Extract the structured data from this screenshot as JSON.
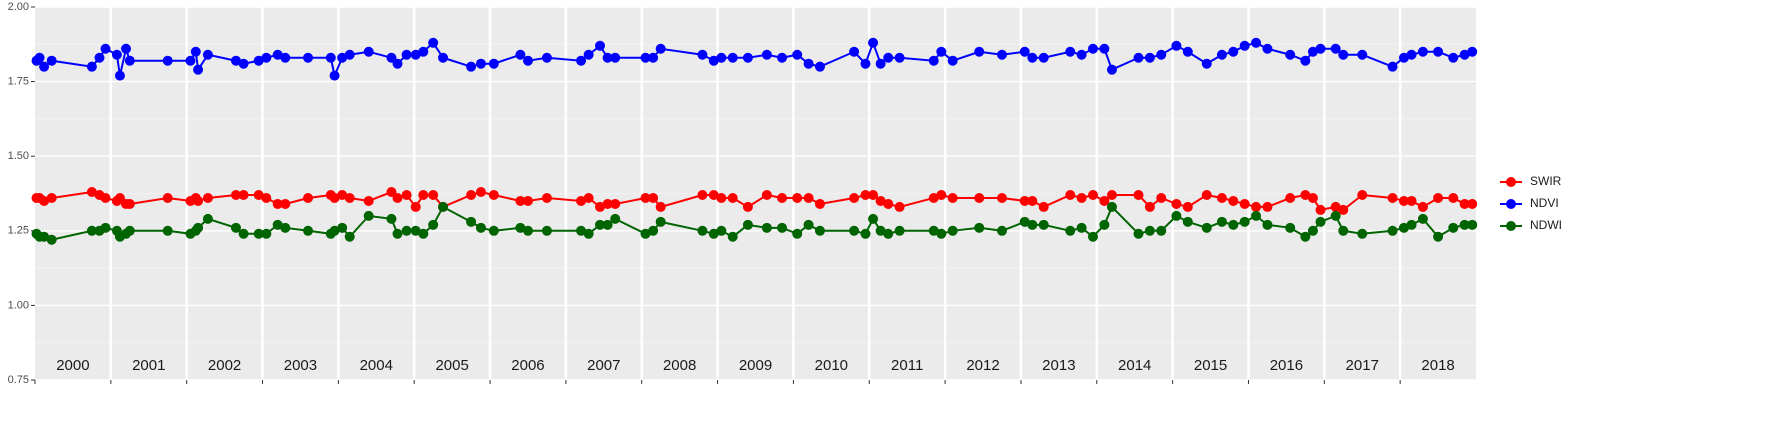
{
  "chart_data": {
    "type": "line",
    "x": [
      2000.02,
      2000.06,
      2000.12,
      2000.22,
      2000.75,
      2000.85,
      2000.93,
      2001.08,
      2001.12,
      2001.2,
      2001.25,
      2001.75,
      2002.05,
      2002.12,
      2002.15,
      2002.28,
      2002.65,
      2002.75,
      2002.95,
      2003.05,
      2003.2,
      2003.3,
      2003.6,
      2003.9,
      2003.95,
      2004.05,
      2004.15,
      2004.4,
      2004.7,
      2004.78,
      2004.9,
      2005.02,
      2005.12,
      2005.25,
      2005.38,
      2005.75,
      2005.88,
      2006.05,
      2006.4,
      2006.5,
      2006.75,
      2007.2,
      2007.3,
      2007.45,
      2007.55,
      2007.65,
      2008.05,
      2008.15,
      2008.25,
      2008.8,
      2008.95,
      2009.05,
      2009.2,
      2009.4,
      2009.65,
      2009.85,
      2010.05,
      2010.2,
      2010.35,
      2010.8,
      2010.95,
      2011.05,
      2011.15,
      2011.25,
      2011.4,
      2011.85,
      2011.95,
      2012.1,
      2012.45,
      2012.75,
      2013.05,
      2013.15,
      2013.3,
      2013.65,
      2013.8,
      2013.95,
      2014.1,
      2014.2,
      2014.55,
      2014.7,
      2014.85,
      2015.05,
      2015.2,
      2015.45,
      2015.65,
      2015.8,
      2015.95,
      2016.1,
      2016.25,
      2016.55,
      2016.75,
      2016.85,
      2016.95,
      2017.15,
      2017.25,
      2017.5,
      2017.9,
      2018.05,
      2018.15,
      2018.3,
      2018.5,
      2018.7,
      2018.85,
      2018.95
    ],
    "series": [
      {
        "name": "SWIR",
        "color": "#ff0000",
        "values": [
          1.36,
          1.36,
          1.35,
          1.36,
          1.38,
          1.37,
          1.36,
          1.35,
          1.36,
          1.34,
          1.34,
          1.36,
          1.35,
          1.36,
          1.35,
          1.36,
          1.37,
          1.37,
          1.37,
          1.36,
          1.34,
          1.34,
          1.36,
          1.37,
          1.36,
          1.37,
          1.36,
          1.35,
          1.38,
          1.36,
          1.37,
          1.33,
          1.37,
          1.37,
          1.33,
          1.37,
          1.38,
          1.37,
          1.35,
          1.35,
          1.36,
          1.35,
          1.36,
          1.33,
          1.34,
          1.34,
          1.36,
          1.36,
          1.33,
          1.37,
          1.37,
          1.36,
          1.36,
          1.33,
          1.37,
          1.36,
          1.36,
          1.36,
          1.34,
          1.36,
          1.37,
          1.37,
          1.35,
          1.34,
          1.33,
          1.36,
          1.37,
          1.36,
          1.36,
          1.36,
          1.35,
          1.35,
          1.33,
          1.37,
          1.36,
          1.37,
          1.35,
          1.37,
          1.37,
          1.33,
          1.36,
          1.34,
          1.33,
          1.37,
          1.36,
          1.35,
          1.34,
          1.33,
          1.33,
          1.36,
          1.37,
          1.36,
          1.32,
          1.33,
          1.32,
          1.37,
          1.36,
          1.35,
          1.35,
          1.33,
          1.36,
          1.36,
          1.34,
          1.34
        ]
      },
      {
        "name": "NDVI",
        "color": "#0000ff",
        "values": [
          1.82,
          1.83,
          1.8,
          1.82,
          1.8,
          1.83,
          1.86,
          1.84,
          1.77,
          1.86,
          1.82,
          1.82,
          1.82,
          1.85,
          1.79,
          1.84,
          1.82,
          1.81,
          1.82,
          1.83,
          1.84,
          1.83,
          1.83,
          1.83,
          1.77,
          1.83,
          1.84,
          1.85,
          1.83,
          1.81,
          1.84,
          1.84,
          1.85,
          1.88,
          1.83,
          1.8,
          1.81,
          1.81,
          1.84,
          1.82,
          1.83,
          1.82,
          1.84,
          1.87,
          1.83,
          1.83,
          1.83,
          1.83,
          1.86,
          1.84,
          1.82,
          1.83,
          1.83,
          1.83,
          1.84,
          1.83,
          1.84,
          1.81,
          1.8,
          1.85,
          1.81,
          1.88,
          1.81,
          1.83,
          1.83,
          1.82,
          1.85,
          1.82,
          1.85,
          1.84,
          1.85,
          1.83,
          1.83,
          1.85,
          1.84,
          1.86,
          1.86,
          1.79,
          1.83,
          1.83,
          1.84,
          1.87,
          1.85,
          1.81,
          1.84,
          1.85,
          1.87,
          1.88,
          1.86,
          1.84,
          1.82,
          1.85,
          1.86,
          1.86,
          1.84,
          1.84,
          1.8,
          1.83,
          1.84,
          1.85,
          1.85,
          1.83,
          1.84,
          1.85
        ]
      },
      {
        "name": "NDWI",
        "color": "#006400",
        "values": [
          1.24,
          1.23,
          1.23,
          1.22,
          1.25,
          1.25,
          1.26,
          1.25,
          1.23,
          1.24,
          1.25,
          1.25,
          1.24,
          1.25,
          1.26,
          1.29,
          1.26,
          1.24,
          1.24,
          1.24,
          1.27,
          1.26,
          1.25,
          1.24,
          1.25,
          1.26,
          1.23,
          1.3,
          1.29,
          1.24,
          1.25,
          1.25,
          1.24,
          1.27,
          1.33,
          1.28,
          1.26,
          1.25,
          1.26,
          1.25,
          1.25,
          1.25,
          1.24,
          1.27,
          1.27,
          1.29,
          1.24,
          1.25,
          1.28,
          1.25,
          1.24,
          1.25,
          1.23,
          1.27,
          1.26,
          1.26,
          1.24,
          1.27,
          1.25,
          1.25,
          1.24,
          1.29,
          1.25,
          1.24,
          1.25,
          1.25,
          1.24,
          1.25,
          1.26,
          1.25,
          1.28,
          1.27,
          1.27,
          1.25,
          1.26,
          1.23,
          1.27,
          1.33,
          1.24,
          1.25,
          1.25,
          1.3,
          1.28,
          1.26,
          1.28,
          1.27,
          1.28,
          1.3,
          1.27,
          1.26,
          1.23,
          1.25,
          1.28,
          1.3,
          1.25,
          1.24,
          1.25,
          1.26,
          1.27,
          1.29,
          1.23,
          1.26,
          1.27,
          1.27
        ]
      }
    ],
    "xlim": [
      2000,
      2019
    ],
    "xticks": [
      2000,
      2001,
      2002,
      2003,
      2004,
      2005,
      2006,
      2007,
      2008,
      2009,
      2010,
      2011,
      2012,
      2013,
      2014,
      2015,
      2016,
      2017,
      2018
    ],
    "ylim": [
      0.75,
      2.0
    ],
    "yticks": [
      0.75,
      {
        "value": 1,
        "label": "1.00"
      },
      1.25,
      {
        "value": 1.5,
        "label": "1.50"
      },
      1.75,
      {
        "value": 2,
        "label": "2.00"
      }
    ],
    "grid": true,
    "legend": "right"
  }
}
